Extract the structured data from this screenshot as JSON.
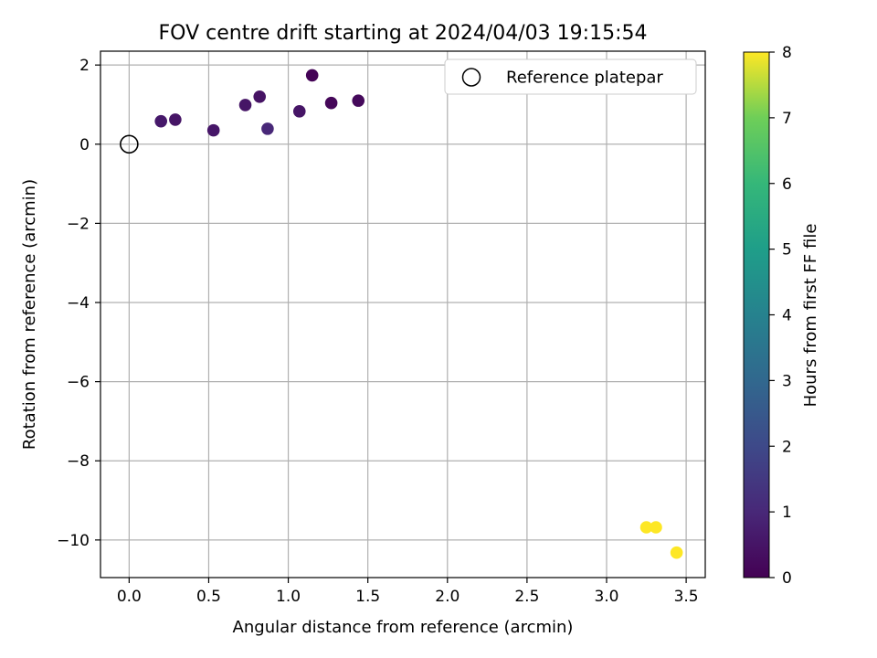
{
  "chart_data": {
    "type": "scatter",
    "title": "FOV centre drift starting at 2024/04/03 19:15:54",
    "xlabel": "Angular distance from reference (arcmin)",
    "ylabel": "Rotation from reference (arcmin)",
    "xlim": [
      -0.18,
      3.62
    ],
    "ylim": [
      -10.95,
      2.35
    ],
    "xticks": [
      0.0,
      0.5,
      1.0,
      1.5,
      2.0,
      2.5,
      3.0,
      3.5
    ],
    "xtick_labels": [
      "0.0",
      "0.5",
      "1.0",
      "1.5",
      "2.0",
      "2.5",
      "3.0",
      "3.5"
    ],
    "yticks": [
      2,
      0,
      -2,
      -4,
      -6,
      -8,
      -10
    ],
    "ytick_labels": [
      "2",
      "0",
      "−2",
      "−4",
      "−6",
      "−8",
      "−10"
    ],
    "grid": true,
    "colormap": "viridis",
    "colorbar": {
      "label": "Hours from first FF file",
      "range": [
        0,
        8
      ],
      "ticks": [
        0,
        1,
        2,
        3,
        4,
        5,
        6,
        7,
        8
      ],
      "tick_labels": [
        "0",
        "1",
        "2",
        "3",
        "4",
        "5",
        "6",
        "7",
        "8"
      ]
    },
    "reference": {
      "x": 0.0,
      "y": 0.0,
      "legend_label": "Reference platepar"
    },
    "legend_position": "upper-right",
    "points": [
      {
        "x": 0.2,
        "y": 0.58,
        "hours": 0.6
      },
      {
        "x": 0.29,
        "y": 0.62,
        "hours": 0.5
      },
      {
        "x": 0.53,
        "y": 0.35,
        "hours": 0.55
      },
      {
        "x": 0.73,
        "y": 0.99,
        "hours": 0.5
      },
      {
        "x": 0.82,
        "y": 1.2,
        "hours": 0.45
      },
      {
        "x": 0.87,
        "y": 0.39,
        "hours": 1.0
      },
      {
        "x": 1.07,
        "y": 0.83,
        "hours": 0.5
      },
      {
        "x": 1.15,
        "y": 1.74,
        "hours": 0.05
      },
      {
        "x": 1.27,
        "y": 1.04,
        "hours": 0.15
      },
      {
        "x": 1.44,
        "y": 1.1,
        "hours": 0.2
      },
      {
        "x": 3.25,
        "y": -9.68,
        "hours": 8.0
      },
      {
        "x": 3.31,
        "y": -9.68,
        "hours": 8.0
      },
      {
        "x": 3.44,
        "y": -10.32,
        "hours": 8.0
      }
    ]
  }
}
